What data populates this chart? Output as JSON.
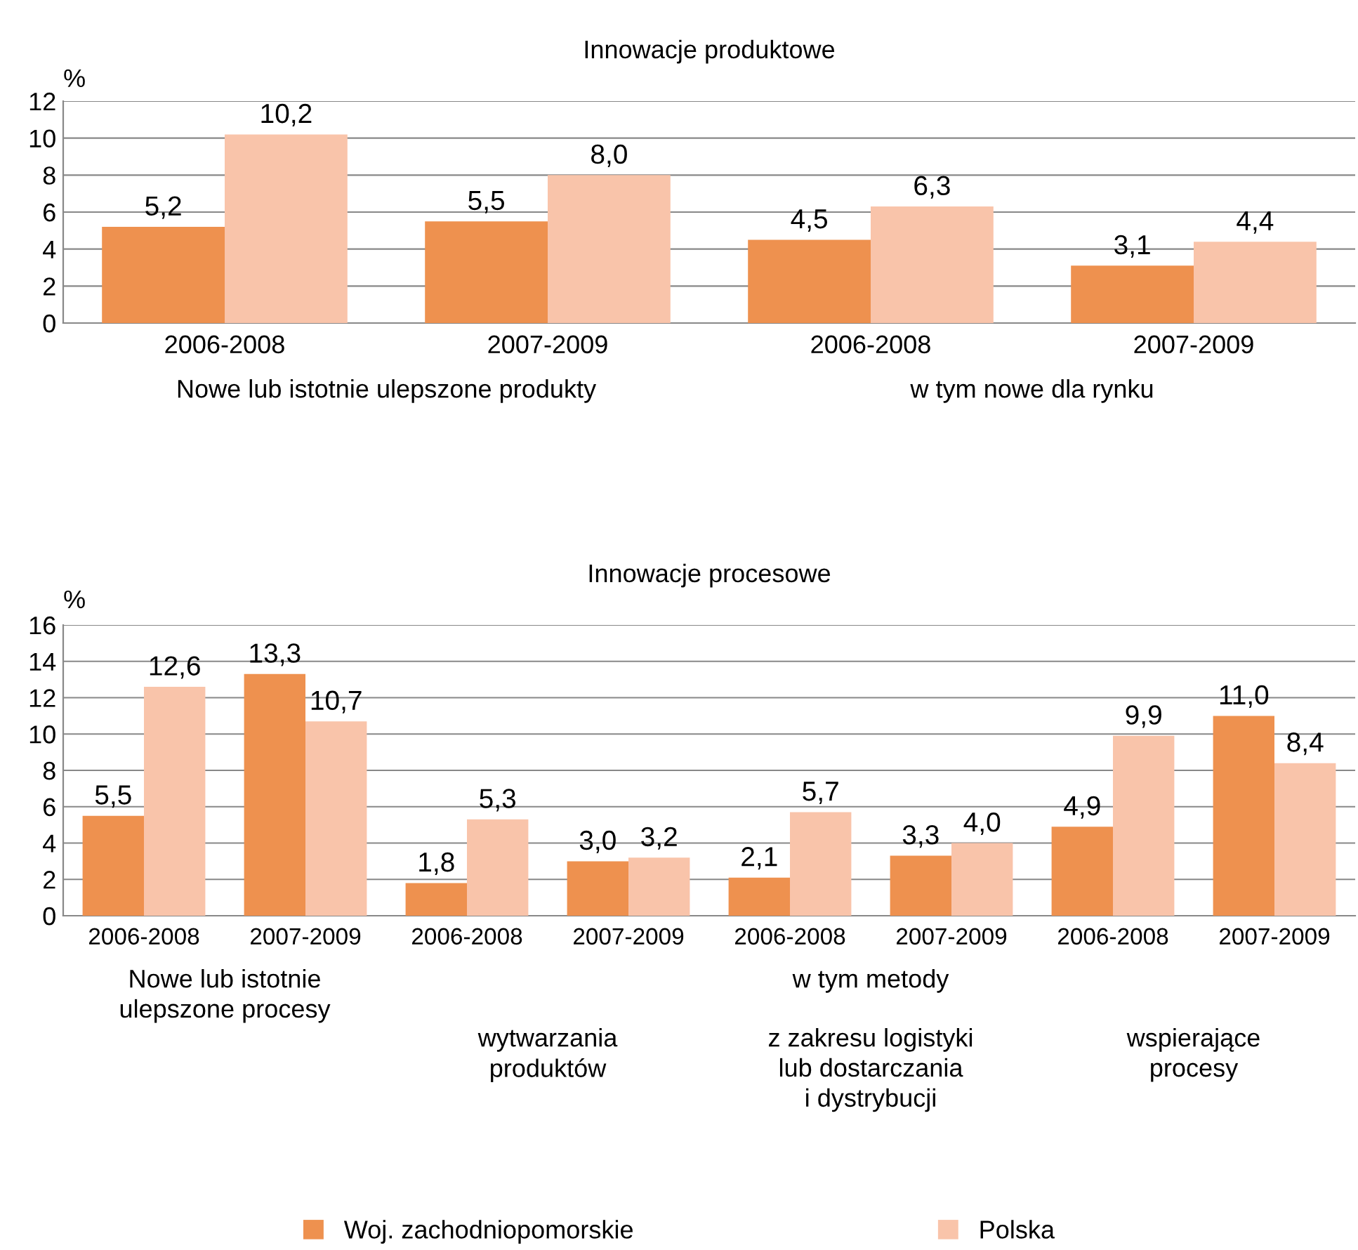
{
  "chart_data": [
    {
      "type": "bar",
      "title": "Innowacje produktowe",
      "ylabel": "%",
      "categories": [
        "2006-2008",
        "2007-2009",
        "2006-2008",
        "2007-2009"
      ],
      "series": [
        {
          "color": "#ee914f",
          "values": [
            5.2,
            5.5,
            4.5,
            3.1
          ],
          "value_labels": [
            "5,2",
            "5,5",
            "4,5",
            "3,1"
          ]
        },
        {
          "color": "#f9c4aa",
          "values": [
            10.2,
            8.0,
            6.3,
            4.4
          ],
          "value_labels": [
            "10,2",
            "8,0",
            "6,3",
            "4,4"
          ]
        }
      ],
      "ylim": [
        0,
        12
      ],
      "yticks": [
        0,
        2,
        4,
        6,
        8,
        10,
        12
      ],
      "grid": "y",
      "annotations": [
        "Nowe lub istotnie ulepszone produkty",
        "w tym nowe dla rynku"
      ]
    },
    {
      "type": "bar",
      "title": "Innowacje procesowe",
      "ylabel": "%",
      "categories": [
        "2006-2008",
        "2007-2009",
        "2006-2008",
        "2007-2009",
        "2006-2008",
        "2007-2009",
        "2006-2008",
        "2007-2009"
      ],
      "series": [
        {
          "name": "Woj. zachodniopomorskie",
          "color": "#ee914f",
          "values": [
            5.5,
            13.3,
            1.8,
            3.0,
            2.1,
            3.3,
            4.9,
            11.0
          ],
          "value_labels": [
            "5,5",
            "13,3",
            "1,8",
            "3,0",
            "2,1",
            "3,3",
            "4,9",
            "11,0"
          ]
        },
        {
          "name": "Polska",
          "color": "#f9c4aa",
          "values": [
            12.6,
            10.7,
            5.3,
            3.2,
            5.7,
            4.0,
            9.9,
            8.4
          ],
          "value_labels": [
            "12,6",
            "10,7",
            "5,3",
            "3,2",
            "5,7",
            "4,0",
            "9,9",
            "8,4"
          ]
        }
      ],
      "ylim": [
        0,
        16
      ],
      "yticks": [
        0,
        2,
        4,
        6,
        8,
        10,
        12,
        14,
        16
      ],
      "grid": "y",
      "legend": "bottom",
      "annotations": [
        "Nowe lub istotnie\nulepszone procesy",
        "w tym metody",
        "wytwarzania\nproduktów",
        "z zakresu logistyki\nlub dostarczania\ni dystrybucji",
        "wspierające\nprocesy"
      ]
    }
  ]
}
